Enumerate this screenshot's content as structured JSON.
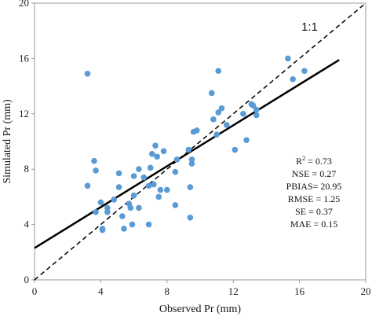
{
  "chart_data": {
    "type": "scatter",
    "xlabel": "Observed Pr (mm)",
    "ylabel": "Simulated Pr (mm)",
    "xlim": [
      0,
      20
    ],
    "ylim": [
      0,
      20
    ],
    "xticks": [
      0,
      4,
      8,
      12,
      16,
      20
    ],
    "yticks": [
      0,
      4,
      8,
      12,
      16,
      20
    ],
    "xtick_labels": [
      "0",
      "4",
      "8",
      "12",
      "16",
      "20"
    ],
    "ytick_labels": [
      "0",
      "4",
      "8",
      "12",
      "16",
      "20"
    ],
    "grid": false,
    "point_color": "#5b9bd5",
    "series": [
      {
        "type": "scatter",
        "points": [
          [
            3.2,
            14.9
          ],
          [
            3.2,
            6.8
          ],
          [
            3.6,
            8.6
          ],
          [
            3.7,
            7.9
          ],
          [
            3.7,
            4.9
          ],
          [
            4.0,
            5.6
          ],
          [
            4.1,
            3.7
          ],
          [
            4.1,
            3.6
          ],
          [
            4.4,
            5.2
          ],
          [
            4.4,
            4.9
          ],
          [
            4.8,
            5.8
          ],
          [
            5.1,
            6.7
          ],
          [
            5.1,
            7.7
          ],
          [
            5.3,
            4.6
          ],
          [
            5.4,
            3.7
          ],
          [
            5.7,
            5.5
          ],
          [
            5.8,
            5.2
          ],
          [
            5.9,
            4.0
          ],
          [
            6.0,
            6.1
          ],
          [
            6.0,
            7.5
          ],
          [
            6.3,
            8.0
          ],
          [
            6.3,
            5.2
          ],
          [
            6.6,
            7.4
          ],
          [
            6.9,
            6.8
          ],
          [
            6.9,
            4.0
          ],
          [
            7.0,
            8.1
          ],
          [
            7.1,
            9.1
          ],
          [
            7.2,
            6.9
          ],
          [
            7.3,
            9.7
          ],
          [
            7.4,
            8.9
          ],
          [
            7.5,
            6.0
          ],
          [
            7.6,
            6.5
          ],
          [
            7.8,
            9.3
          ],
          [
            8.0,
            6.5
          ],
          [
            8.5,
            7.8
          ],
          [
            8.5,
            5.4
          ],
          [
            8.6,
            8.7
          ],
          [
            9.3,
            9.4
          ],
          [
            9.4,
            6.7
          ],
          [
            9.4,
            4.5
          ],
          [
            9.5,
            8.4
          ],
          [
            9.5,
            8.7
          ],
          [
            9.6,
            10.7
          ],
          [
            9.8,
            10.8
          ],
          [
            10.7,
            13.5
          ],
          [
            10.8,
            11.6
          ],
          [
            11.0,
            10.5
          ],
          [
            11.1,
            12.1
          ],
          [
            11.1,
            15.1
          ],
          [
            11.3,
            12.4
          ],
          [
            11.6,
            11.2
          ],
          [
            12.1,
            9.4
          ],
          [
            12.6,
            12.0
          ],
          [
            12.8,
            10.1
          ],
          [
            13.1,
            12.7
          ],
          [
            13.2,
            12.6
          ],
          [
            13.4,
            12.3
          ],
          [
            13.4,
            11.9
          ],
          [
            15.3,
            16.0
          ],
          [
            15.6,
            14.5
          ],
          [
            16.3,
            15.1
          ]
        ]
      },
      {
        "type": "line",
        "name": "",
        "style": "solid",
        "x": [
          0,
          18.4
        ],
        "y": [
          2.3,
          15.9
        ]
      },
      {
        "type": "line",
        "name": "",
        "style": "dashed",
        "x": [
          0,
          20
        ],
        "y": [
          0,
          20
        ]
      }
    ],
    "annotations": {
      "one_to_one": "1:1",
      "r2_prefix": "R",
      "r2_sup": "2",
      "r2_value": " = 0.73",
      "nse": "NSE = 0.27",
      "pbias": "PBIAS= 20.95",
      "rmse": "RMSE = 1.25",
      "se": "SE = 0.37",
      "mae": "MAE = 0.15"
    }
  }
}
